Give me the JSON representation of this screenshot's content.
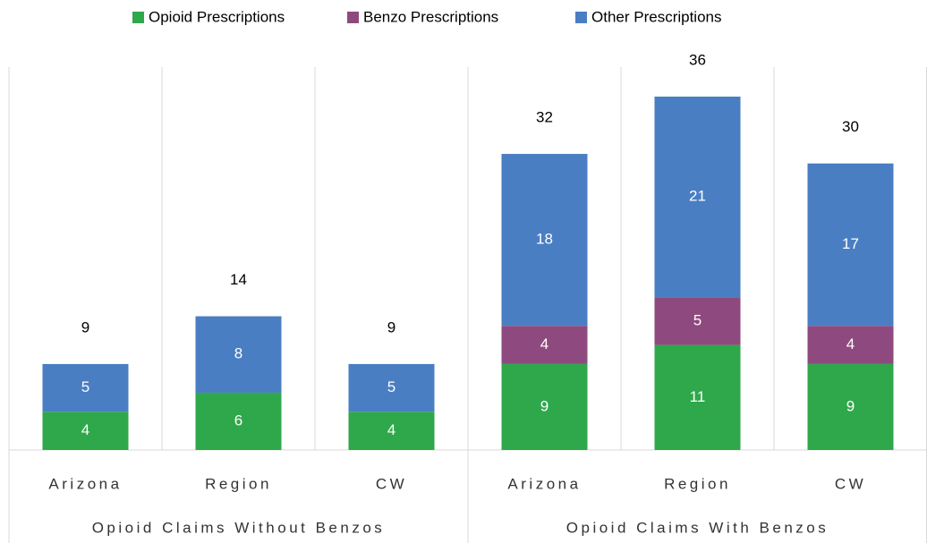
{
  "chart_data": {
    "type": "stacked_bar",
    "groups": [
      "Opioid Claims Without Benzos",
      "Opioid Claims With Benzos"
    ],
    "categories": [
      "Arizona",
      "Region",
      "CW",
      "Arizona",
      "Region",
      "CW"
    ],
    "series": [
      {
        "name": "Opioid Prescriptions",
        "color": "#2ea84a",
        "values": [
          4,
          6,
          4,
          9,
          11,
          9
        ]
      },
      {
        "name": "Benzo Prescriptions",
        "color": "#8e4a7e",
        "values": [
          null,
          null,
          null,
          4,
          5,
          4
        ]
      },
      {
        "name": "Other Prescriptions",
        "color": "#4a7ec2",
        "values": [
          5,
          8,
          5,
          18,
          21,
          17
        ]
      }
    ],
    "totals": [
      9,
      14,
      9,
      32,
      36,
      30
    ],
    "legend": "top"
  }
}
